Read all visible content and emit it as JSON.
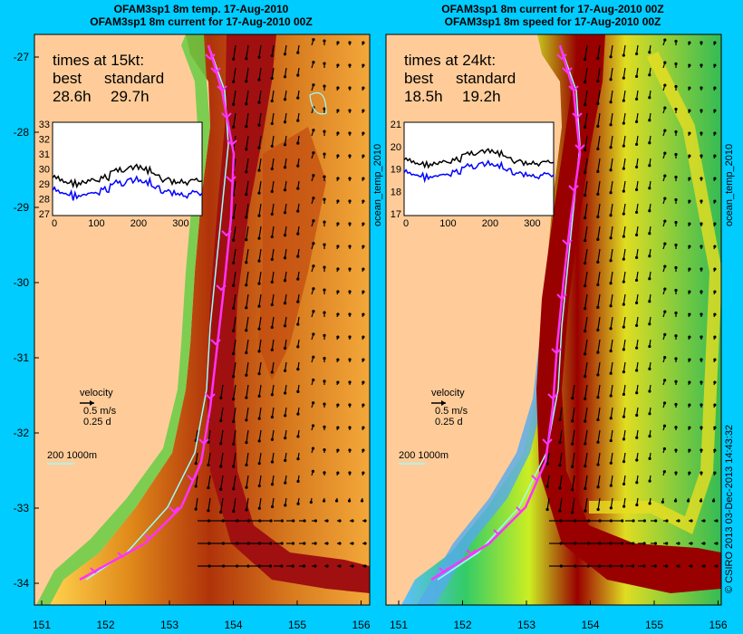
{
  "panels": [
    {
      "title1": "OFAM3sp1 8m temp. 17-Aug-2010",
      "title2": "OFAM3sp1 8m current for 17-Aug-2010 00Z",
      "times_heading": "times at 15kt:",
      "best_label": "best",
      "standard_label": "standard",
      "best_value": "28.6h",
      "standard_value": "29.7h",
      "inset": {
        "yticks": [
          "33",
          "32",
          "31",
          "30",
          "29",
          "28",
          "27"
        ],
        "xticks": [
          "0",
          "100",
          "200",
          "300"
        ],
        "black_series_color": "#000000",
        "blue_series_color": "#0000ff"
      },
      "side_label": ""
    },
    {
      "title1": "OFAM3sp1 8m current for 17-Aug-2010 00Z",
      "title2": "OFAM3sp1 8m speed for 17-Aug-2010 00Z",
      "times_heading": "times at 24kt:",
      "best_label": "best",
      "standard_label": "standard",
      "best_value": "18.5h",
      "standard_value": "19.2h",
      "inset": {
        "yticks": [
          "21",
          "20",
          "19",
          "18",
          "17"
        ],
        "xticks": [
          "0",
          "100",
          "200",
          "300"
        ],
        "black_series_color": "#000000",
        "blue_series_color": "#0000ff"
      },
      "side_label": "ocean_temp_2010"
    }
  ],
  "legend": {
    "velocity_label": "velocity",
    "speed_label": "0.5 m/s",
    "time_label": "0.25 d",
    "depth_label": "200  1000m"
  },
  "axes": {
    "lat_ticks": [
      "-27",
      "-28",
      "-29",
      "-30",
      "-31",
      "-32",
      "-33",
      "-34"
    ],
    "lon_ticks": [
      "151",
      "152",
      "153",
      "154",
      "155",
      "156"
    ]
  },
  "right_side_label": "ocean_temp_2010",
  "credit": "© CSIRO 2013   03-Dec-2013 14:43:32",
  "colors": {
    "background": "#00ccff",
    "land": "#ffcc99",
    "best_route": "#ff33ff",
    "standard_route": "#99ffff",
    "current_core": "#990000"
  }
}
